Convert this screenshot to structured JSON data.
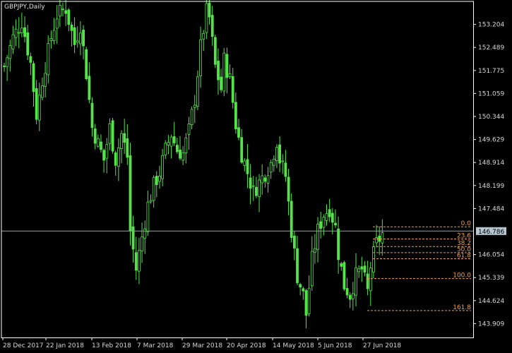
{
  "chart_data": {
    "type": "candlestick",
    "title": "GBPJPY,Daily",
    "current_price": "146.786",
    "ylim": [
      143.48,
      153.92
    ],
    "y_ticks": [
      "153.204",
      "152.489",
      "151.775",
      "151.059",
      "150.344",
      "149.629",
      "148.914",
      "148.199",
      "147.484",
      "146.054",
      "145.339",
      "144.624",
      "143.909"
    ],
    "x_ticks": [
      "28 Dec 2017",
      "22 Jan 2018",
      "13 Feb 2018",
      "7 Mar 2018",
      "29 Mar 2018",
      "20 Apr 2018",
      "14 May 2018",
      "5 Jun 2018",
      "27 Jun 2018"
    ],
    "grid": false,
    "colors": {
      "background": "#000000",
      "candle": "#55e34a",
      "fib": "#e8a04a",
      "price_line": "#8fa3b0",
      "axis": "#ffffff"
    },
    "close_path": [
      [
        0,
        151.9
      ],
      [
        3,
        152.8
      ],
      [
        6,
        153.3
      ],
      [
        9,
        152.0
      ],
      [
        11,
        150.4
      ],
      [
        13,
        151.5
      ],
      [
        16,
        152.8
      ],
      [
        18,
        153.5
      ],
      [
        21,
        153.7
      ],
      [
        24,
        152.6
      ],
      [
        26,
        153.2
      ],
      [
        28,
        151.7
      ],
      [
        30,
        150.0
      ],
      [
        32,
        149.5
      ],
      [
        34,
        149.0
      ],
      [
        36,
        150.0
      ],
      [
        38,
        149.0
      ],
      [
        40,
        149.8
      ],
      [
        42,
        149.1
      ],
      [
        43,
        146.8
      ],
      [
        45,
        145.6
      ],
      [
        47,
        146.6
      ],
      [
        49,
        147.6
      ],
      [
        51,
        148.2
      ],
      [
        53,
        148.6
      ],
      [
        55,
        149.3
      ],
      [
        57,
        149.8
      ],
      [
        59,
        149.3
      ],
      [
        61,
        149.2
      ],
      [
        63,
        149.9
      ],
      [
        65,
        150.9
      ],
      [
        67,
        152.5
      ],
      [
        69,
        153.6
      ],
      [
        70,
        153.4
      ],
      [
        72,
        151.9
      ],
      [
        74,
        151.2
      ],
      [
        75,
        152.1
      ],
      [
        77,
        151.5
      ],
      [
        79,
        150.1
      ],
      [
        81,
        149.2
      ],
      [
        83,
        148.6
      ],
      [
        85,
        148.0
      ],
      [
        87,
        148.3
      ],
      [
        89,
        148.6
      ],
      [
        91,
        148.9
      ],
      [
        93,
        149.6
      ],
      [
        94,
        149.0
      ],
      [
        96,
        148.5
      ],
      [
        98,
        146.8
      ],
      [
        100,
        145.4
      ],
      [
        102,
        144.8
      ],
      [
        103,
        144.2
      ],
      [
        105,
        145.9
      ],
      [
        107,
        146.8
      ],
      [
        109,
        147.3
      ],
      [
        111,
        147.5
      ],
      [
        113,
        146.9
      ],
      [
        114,
        146.1
      ],
      [
        116,
        145.1
      ],
      [
        118,
        144.8
      ],
      [
        120,
        145.4
      ],
      [
        122,
        145.6
      ],
      [
        124,
        144.9
      ],
      [
        125,
        145.7
      ],
      [
        127,
        146.4
      ],
      [
        129,
        146.7
      ]
    ],
    "fibonacci": {
      "range": [
        146.92,
        145.31
      ],
      "levels": [
        {
          "label": "0.0",
          "ratio": 0.0
        },
        {
          "label": "23.6",
          "ratio": 0.236
        },
        {
          "label": "38.2",
          "ratio": 0.382
        },
        {
          "label": "50.0",
          "ratio": 0.5
        },
        {
          "label": "61.8",
          "ratio": 0.618
        },
        {
          "label": "100.0",
          "ratio": 1.0
        },
        {
          "label": "161.8",
          "ratio": 1.618
        }
      ]
    }
  }
}
